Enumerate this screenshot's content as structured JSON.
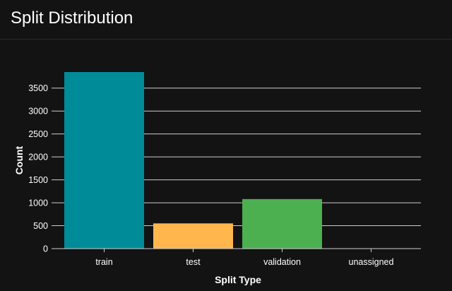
{
  "header": {
    "title": "Split Distribution"
  },
  "colors": {
    "background": "#131313",
    "grid": "#cfcfcf",
    "text": "#ffffff"
  },
  "chart_data": {
    "type": "bar",
    "title": "",
    "xlabel": "Split Type",
    "ylabel": "Count",
    "categories": [
      "train",
      "test",
      "validation",
      "unassigned"
    ],
    "values": [
      3850,
      550,
      1080,
      0
    ],
    "colors": [
      "#008b99",
      "#ffb74d",
      "#4caf50",
      "#131313"
    ],
    "ylim": [
      0,
      3850
    ],
    "yticks": [
      0,
      500,
      1000,
      1500,
      2000,
      2500,
      3000,
      3500
    ],
    "grid": true,
    "legend": "none"
  }
}
